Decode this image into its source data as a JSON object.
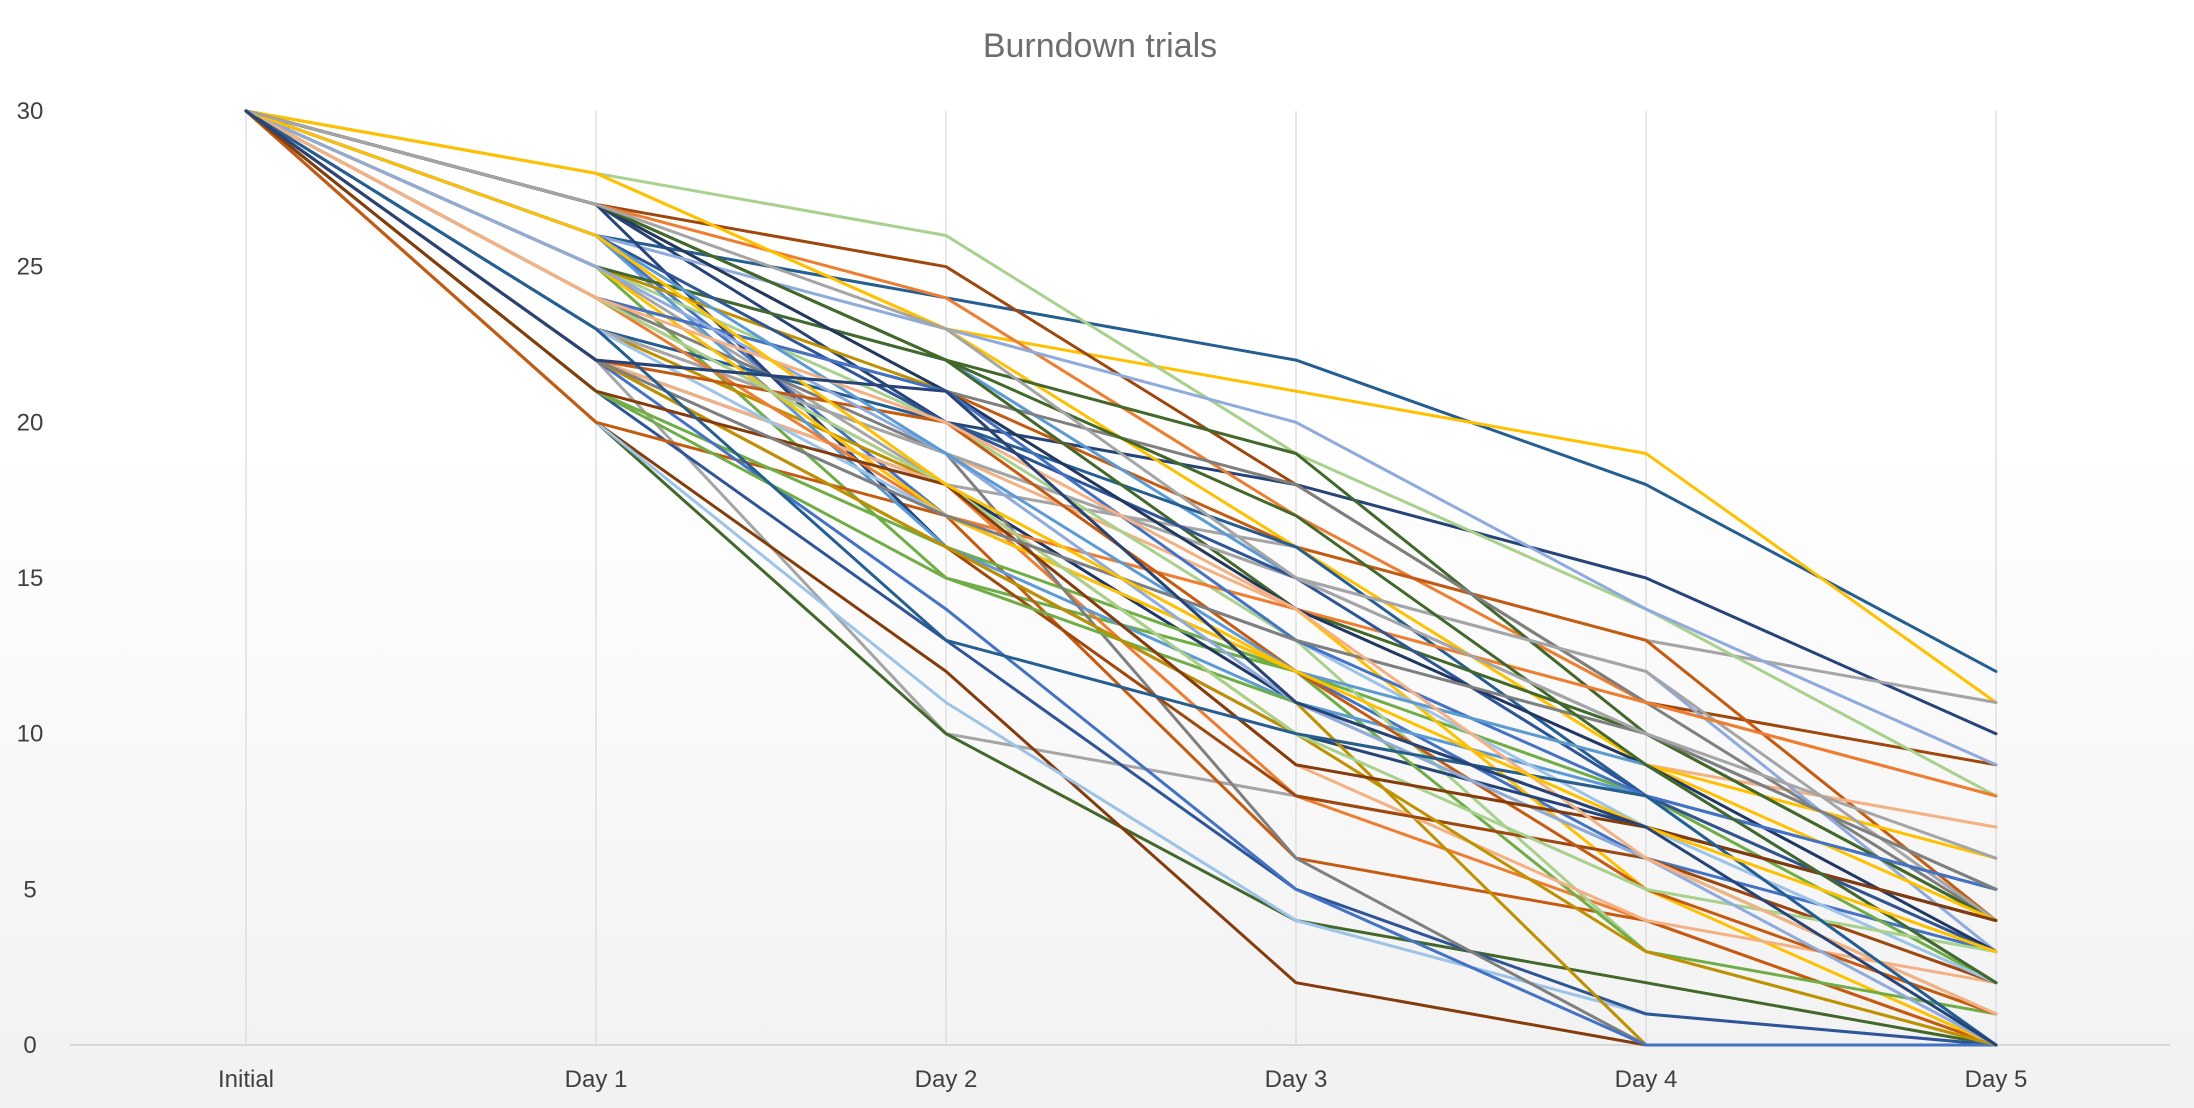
{
  "chart_data": {
    "type": "line",
    "title": "Burndown trials",
    "xlabel": "",
    "ylabel": "",
    "categories": [
      "Initial",
      "Day 1",
      "Day 2",
      "Day 3",
      "Day 4",
      "Day 5"
    ],
    "ylim": [
      0,
      30
    ],
    "yticks": [
      0,
      5,
      10,
      15,
      20,
      25,
      30
    ],
    "grid": "vertical",
    "legend": "none",
    "series": [
      {
        "color": "#255e91",
        "values": [
          30,
          26,
          24,
          22,
          18,
          12
        ]
      },
      {
        "color": "#ffc000",
        "values": [
          30,
          28,
          23,
          21,
          19,
          11
        ]
      },
      {
        "color": "#264478",
        "values": [
          30,
          27,
          20,
          18,
          15,
          10
        ]
      },
      {
        "color": "#a5a5a5",
        "values": [
          30,
          25,
          18,
          16,
          13,
          11
        ]
      },
      {
        "color": "#9e480e",
        "values": [
          30,
          27,
          25,
          18,
          11,
          9
        ]
      },
      {
        "color": "#a9d18e",
        "values": [
          30,
          28,
          26,
          19,
          14,
          8
        ]
      },
      {
        "color": "#ed7d31",
        "values": [
          30,
          27,
          24,
          17,
          11,
          8
        ]
      },
      {
        "color": "#8faadc",
        "values": [
          30,
          26,
          23,
          20,
          14,
          9
        ]
      },
      {
        "color": "#c55a11",
        "values": [
          30,
          24,
          21,
          16,
          13,
          4
        ]
      },
      {
        "color": "#5b9bd5",
        "values": [
          30,
          25,
          22,
          15,
          10,
          5
        ]
      },
      {
        "color": "#f4b183",
        "values": [
          30,
          23,
          19,
          14,
          9,
          7
        ]
      },
      {
        "color": "#ffc000",
        "values": [
          30,
          28,
          23,
          16,
          9,
          6
        ]
      },
      {
        "color": "#43682b",
        "values": [
          30,
          27,
          22,
          19,
          10,
          4
        ]
      },
      {
        "color": "#7f7f7f",
        "values": [
          30,
          24,
          21,
          18,
          11,
          4
        ]
      },
      {
        "color": "#9dc3e6",
        "values": [
          30,
          22,
          17,
          13,
          10,
          5
        ]
      },
      {
        "color": "#4472c4",
        "values": [
          30,
          26,
          17,
          12,
          6,
          3
        ]
      },
      {
        "color": "#70ad47",
        "values": [
          30,
          25,
          15,
          12,
          8,
          2
        ]
      },
      {
        "color": "#bf9000",
        "values": [
          30,
          23,
          18,
          10,
          8,
          3
        ]
      },
      {
        "color": "#203864",
        "values": [
          30,
          22,
          18,
          11,
          7,
          4
        ]
      },
      {
        "color": "#ed7d31",
        "values": [
          30,
          24,
          18,
          8,
          4,
          0
        ]
      },
      {
        "color": "#a5a5a5",
        "values": [
          30,
          22,
          10,
          8,
          6,
          2
        ]
      },
      {
        "color": "#43682b",
        "values": [
          30,
          20,
          10,
          4,
          2,
          0
        ]
      },
      {
        "color": "#843c0c",
        "values": [
          30,
          20,
          12,
          2,
          0,
          0
        ]
      },
      {
        "color": "#9dc3e6",
        "values": [
          30,
          20,
          11,
          4,
          1,
          0
        ]
      },
      {
        "color": "#2f5597",
        "values": [
          30,
          21,
          13,
          5,
          1,
          0
        ]
      },
      {
        "color": "#c55a11",
        "values": [
          30,
          20,
          17,
          6,
          4,
          0
        ]
      },
      {
        "color": "#a9d18e",
        "values": [
          30,
          25,
          20,
          13,
          3,
          0
        ]
      },
      {
        "color": "#ffc000",
        "values": [
          30,
          27,
          21,
          14,
          5,
          0
        ]
      },
      {
        "color": "#264478",
        "values": [
          30,
          27,
          16,
          10,
          7,
          4
        ]
      },
      {
        "color": "#8faadc",
        "values": [
          30,
          23,
          19,
          15,
          12,
          3
        ]
      },
      {
        "color": "#70ad47",
        "values": [
          30,
          21,
          16,
          12,
          3,
          1
        ]
      },
      {
        "color": "#5b9bd5",
        "values": [
          30,
          26,
          16,
          11,
          8,
          0
        ]
      },
      {
        "color": "#bf9000",
        "values": [
          30,
          25,
          21,
          11,
          0,
          0
        ]
      },
      {
        "color": "#7f7f7f",
        "values": [
          30,
          24,
          19,
          6,
          0,
          0
        ]
      },
      {
        "color": "#4472c4",
        "values": [
          30,
          22,
          14,
          5,
          0,
          0
        ]
      },
      {
        "color": "#f4b183",
        "values": [
          30,
          22,
          18,
          9,
          4,
          2
        ]
      },
      {
        "color": "#255e91",
        "values": [
          30,
          23,
          20,
          16,
          8,
          5
        ]
      },
      {
        "color": "#43682b",
        "values": [
          30,
          25,
          22,
          14,
          10,
          4
        ]
      },
      {
        "color": "#9e480e",
        "values": [
          30,
          22,
          16,
          8,
          6,
          2
        ]
      },
      {
        "color": "#a5a5a5",
        "values": [
          30,
          23,
          19,
          15,
          12,
          4
        ]
      },
      {
        "color": "#ed7d31",
        "values": [
          30,
          24,
          17,
          14,
          11,
          8
        ]
      },
      {
        "color": "#2f5597",
        "values": [
          30,
          26,
          20,
          15,
          8,
          3
        ]
      },
      {
        "color": "#ffc000",
        "values": [
          30,
          25,
          17,
          12,
          9,
          4
        ]
      },
      {
        "color": "#70ad47",
        "values": [
          30,
          21,
          15,
          11,
          6,
          1
        ]
      },
      {
        "color": "#9dc3e6",
        "values": [
          30,
          23,
          17,
          13,
          7,
          2
        ]
      },
      {
        "color": "#203864",
        "values": [
          30,
          27,
          21,
          14,
          9,
          3
        ]
      },
      {
        "color": "#bf9000",
        "values": [
          30,
          22,
          16,
          10,
          3,
          0
        ]
      },
      {
        "color": "#c55a11",
        "values": [
          30,
          22,
          20,
          12,
          5,
          1
        ]
      },
      {
        "color": "#4472c4",
        "values": [
          30,
          24,
          21,
          13,
          8,
          5
        ]
      },
      {
        "color": "#a9d18e",
        "values": [
          30,
          24,
          18,
          10,
          5,
          3
        ]
      },
      {
        "color": "#8faadc",
        "values": [
          30,
          25,
          19,
          11,
          6,
          0
        ]
      },
      {
        "color": "#843c0c",
        "values": [
          30,
          21,
          18,
          9,
          7,
          4
        ]
      },
      {
        "color": "#5b9bd5",
        "values": [
          30,
          26,
          19,
          12,
          9,
          2
        ]
      },
      {
        "color": "#7f7f7f",
        "values": [
          30,
          22,
          17,
          13,
          10,
          5
        ]
      },
      {
        "color": "#f4b183",
        "values": [
          30,
          24,
          20,
          14,
          6,
          1
        ]
      },
      {
        "color": "#255e91",
        "values": [
          30,
          23,
          13,
          10,
          8,
          0
        ]
      },
      {
        "color": "#43682b",
        "values": [
          30,
          27,
          22,
          17,
          9,
          2
        ]
      },
      {
        "color": "#ffc000",
        "values": [
          30,
          26,
          18,
          12,
          7,
          3
        ]
      },
      {
        "color": "#a5a5a5",
        "values": [
          30,
          27,
          23,
          15,
          10,
          6
        ]
      },
      {
        "color": "#264478",
        "values": [
          30,
          22,
          21,
          11,
          7,
          0
        ]
      }
    ]
  }
}
